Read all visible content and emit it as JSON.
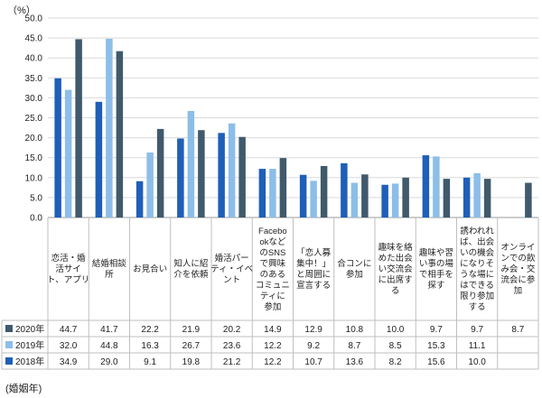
{
  "chart_data": {
    "type": "bar",
    "unit_label": "（%）",
    "footnote": "(婚姻年)",
    "ylim": [
      0,
      50
    ],
    "y_ticks": [
      "0.0",
      "5.0",
      "10.0",
      "15.0",
      "20.0",
      "25.0",
      "30.0",
      "35.0",
      "40.0",
      "45.0",
      "50.0"
    ],
    "grid": true,
    "legend_placement": "table-left",
    "categories": [
      "恋活・婚活サイト、アプリ",
      "結婚相談所",
      "お見合い",
      "知人に紹介を依頼",
      "婚活パーティ・イベント",
      "FacebookなどのSNSで興味のあるコミュニティに参加",
      "「恋人募集中！」と周囲に宣言する",
      "合コンに参加",
      "趣味を絡めた出会い交流会に出席する",
      "趣味や習い事の場で相手を探す",
      "誘われれば、出会いの機会になりそうな場にはできる限り参加する",
      "オンラインでの飲み会・交流会に参加"
    ],
    "category_lines": [
      [
        "恋活・婚",
        "活サイ",
        "ト、アプリ"
      ],
      [
        "結婚相談",
        "所"
      ],
      [
        "お見合い"
      ],
      [
        "知人に紹",
        "介を依頼"
      ],
      [
        "婚活パー",
        "ティ・イベ",
        "ント"
      ],
      [
        "Facebo",
        "okなど",
        "のSNS",
        "で興味",
        "のある",
        "コミュニ",
        "ティに",
        "参加"
      ],
      [
        "「恋人募",
        "集中！」",
        "と周囲に",
        "宣言する"
      ],
      [
        "合コンに",
        "参加"
      ],
      [
        "趣味を絡",
        "めた出会",
        "い交流会",
        "に出席す",
        "る"
      ],
      [
        "趣味や習",
        "い事の場",
        "で相手を",
        "探す"
      ],
      [
        "誘われれ",
        "ば、出会",
        "いの機会",
        "になりそ",
        "うな場に",
        "はできる",
        "限り参加",
        "する"
      ],
      [
        "オンライ",
        "ンでの飲",
        "み会・交",
        "流会に参",
        "加"
      ]
    ],
    "series": [
      {
        "name": "2018年",
        "color": "#1f5fb8",
        "values": [
          34.9,
          29.0,
          9.1,
          19.8,
          21.2,
          12.2,
          10.7,
          13.6,
          8.2,
          15.6,
          10.0,
          null
        ],
        "labels": [
          "34.9",
          "29.0",
          "9.1",
          "19.8",
          "21.2",
          "12.2",
          "10.7",
          "13.6",
          "8.2",
          "15.6",
          "10.0",
          ""
        ]
      },
      {
        "name": "2019年",
        "color": "#8cbee8",
        "values": [
          32.0,
          44.8,
          16.3,
          26.7,
          23.6,
          12.2,
          9.2,
          8.7,
          8.5,
          15.3,
          11.1,
          null
        ],
        "labels": [
          "32.0",
          "44.8",
          "16.3",
          "26.7",
          "23.6",
          "12.2",
          "9.2",
          "8.7",
          "8.5",
          "15.3",
          "11.1",
          ""
        ]
      },
      {
        "name": "2020年",
        "color": "#405a6c",
        "values": [
          44.7,
          41.7,
          22.2,
          21.9,
          20.2,
          14.9,
          12.9,
          10.8,
          10.0,
          9.7,
          9.7,
          8.7
        ],
        "labels": [
          "44.7",
          "41.7",
          "22.2",
          "21.9",
          "20.2",
          "14.9",
          "12.9",
          "10.8",
          "10.0",
          "9.7",
          "9.7",
          "8.7"
        ]
      }
    ],
    "table_row_order": [
      2,
      1,
      0
    ]
  }
}
